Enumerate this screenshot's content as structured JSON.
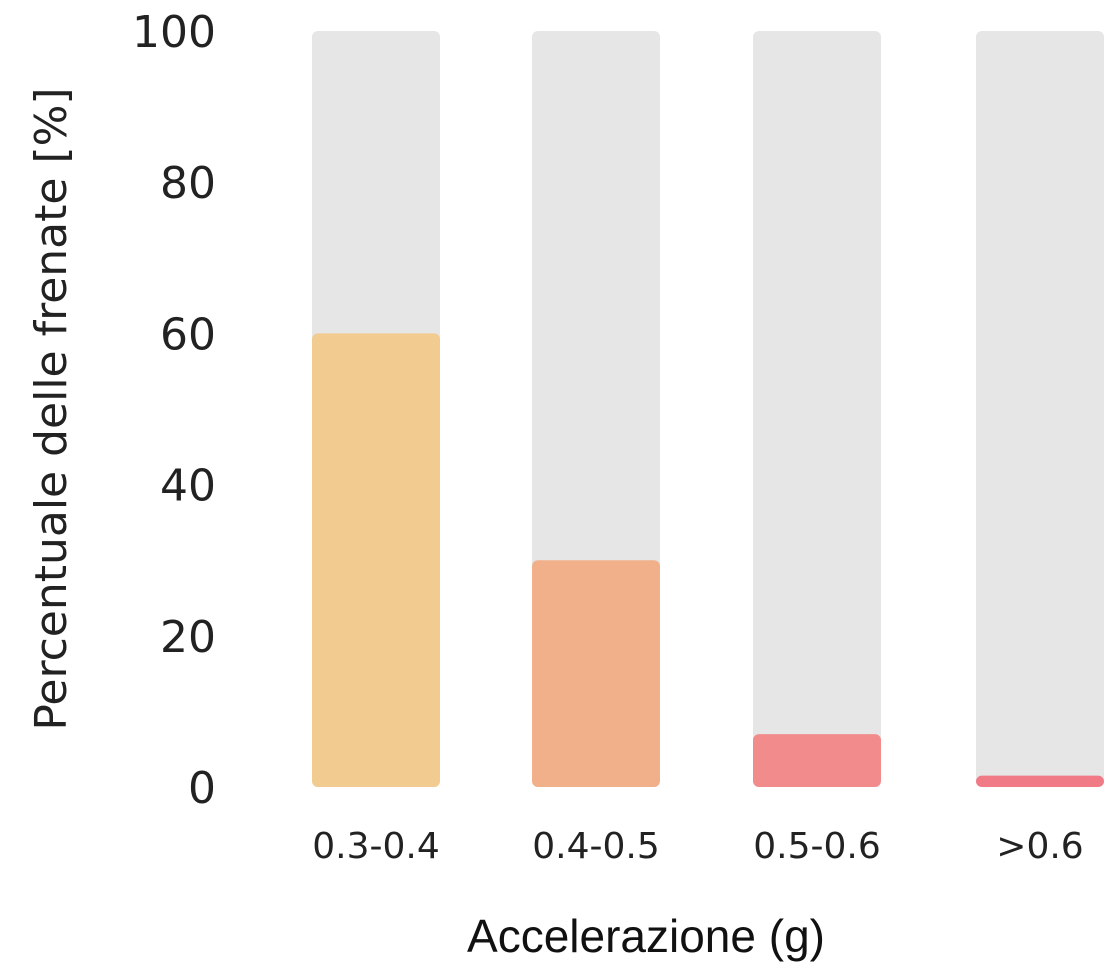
{
  "chart_data": {
    "type": "bar",
    "title": "",
    "xlabel": "Accelerazione (g)",
    "ylabel": "Percentuale delle frenate [%]",
    "ylim": [
      0,
      100
    ],
    "yticks": [
      "0",
      "20",
      "40",
      "60",
      "80",
      "100"
    ],
    "categories": [
      "0.3-0.4",
      "0.4-0.5",
      "0.5-0.6",
      ">0.6"
    ],
    "values": [
      60,
      30,
      7,
      1.5
    ],
    "background_value": 100,
    "grid": false,
    "colors": {
      "track": "#e6e6e6",
      "bars": [
        "#f1cb8f",
        "#f1b089",
        "#f28c8c",
        "#f07a85"
      ]
    }
  }
}
